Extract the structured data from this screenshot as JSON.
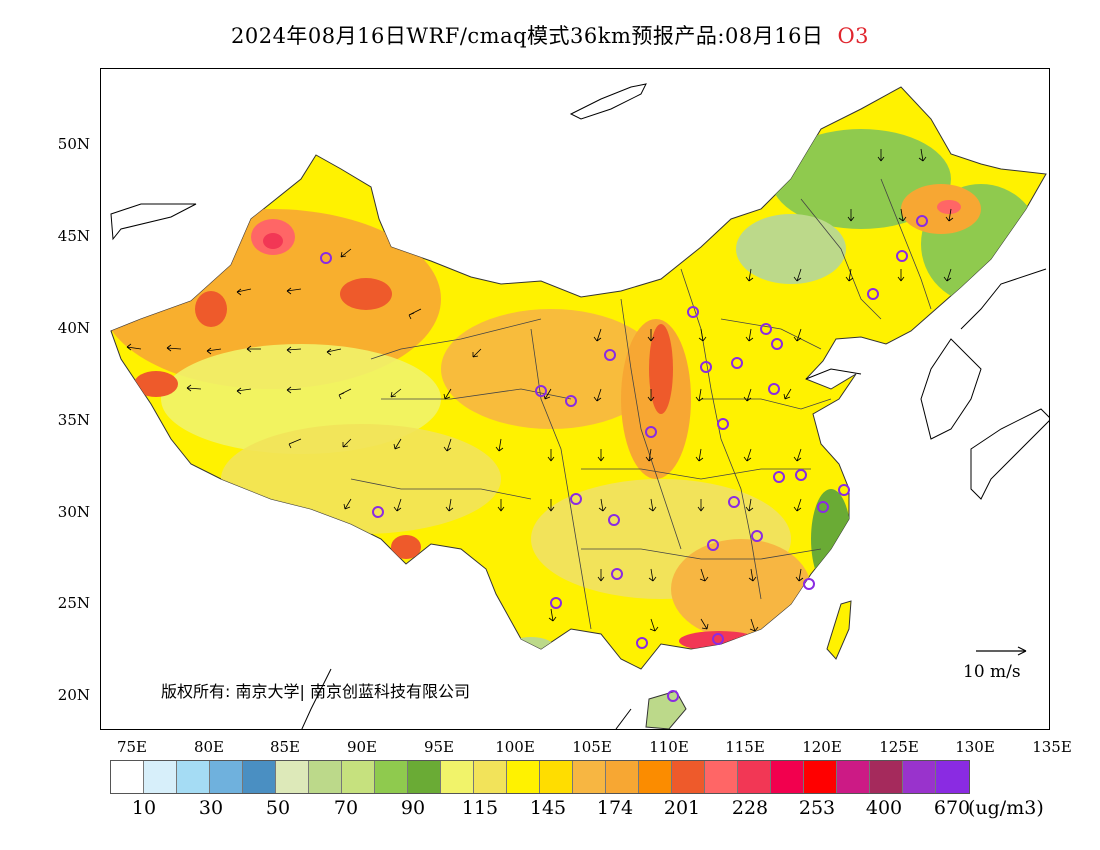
{
  "title": {
    "text": "2024年08月16日WRF/cmaq模式36km预报产品:08月16日",
    "species": "O3",
    "species_color": "#e0262e"
  },
  "map": {
    "lon_range": [
      73,
      135
    ],
    "lat_range": [
      18,
      54
    ],
    "x_ticks": [
      "75E",
      "80E",
      "85E",
      "90E",
      "95E",
      "100E",
      "105E",
      "110E",
      "115E",
      "120E",
      "125E",
      "130E",
      "135E"
    ],
    "y_ticks": [
      "20N",
      "25N",
      "30N",
      "35N",
      "40N",
      "45N",
      "50N"
    ],
    "copyright": "版权所有: 南京大学| 南京创蓝科技有限公司",
    "wind_scale_label": "10 m/s",
    "city_marker_color": "#8a2be2"
  },
  "legend": {
    "colors": [
      "#ffffff",
      "#d7effa",
      "#a5dcf4",
      "#6fb1dd",
      "#4a8fc2",
      "#dde9b9",
      "#bcd98a",
      "#c6e17e",
      "#8fca4e",
      "#6aab35",
      "#f1f36a",
      "#f2e35a",
      "#fff200",
      "#ffdd00",
      "#f7b642",
      "#f7a733",
      "#fb8c00",
      "#ee5a2b",
      "#ff6666",
      "#f23755",
      "#f2004e",
      "#ff0000",
      "#cc1a85",
      "#a52a5c",
      "#9933cc",
      "#8a2be2"
    ],
    "labels": [
      "10",
      "30",
      "50",
      "70",
      "90",
      "115",
      "145",
      "174",
      "201",
      "228",
      "253",
      "400",
      "670"
    ],
    "unit": "(ug/m3)"
  }
}
